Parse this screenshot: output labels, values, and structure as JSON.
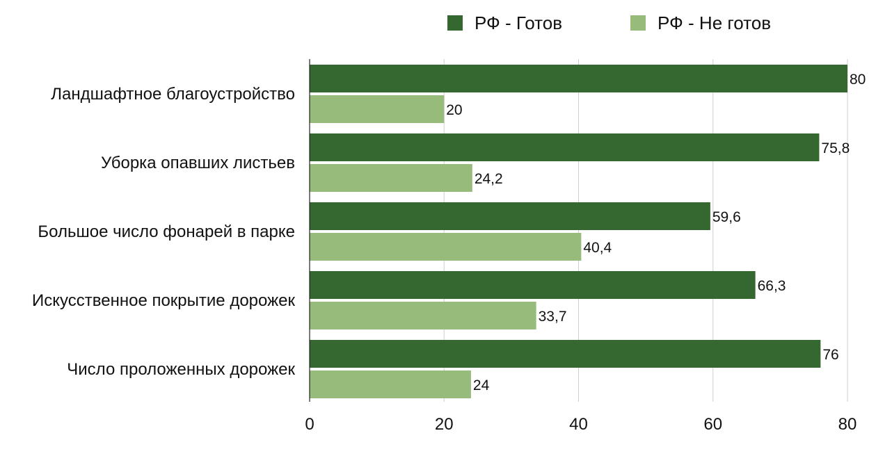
{
  "chart_data": {
    "type": "bar",
    "orientation": "horizontal",
    "categories": [
      "Ландшафтное благоустройство",
      "Уборка опавших листьев",
      "Большое число фонарей в парке",
      "Искусственное покрытие дорожек",
      "Число проложенных дорожек"
    ],
    "series": [
      {
        "name": "РФ - Готов",
        "color": "#356731",
        "values": [
          80,
          75.8,
          59.6,
          66.3,
          76
        ],
        "labels": [
          "80",
          "75,8",
          "59,6",
          "66,3",
          "76"
        ]
      },
      {
        "name": "РФ - Не готов",
        "color": "#97bb7a",
        "values": [
          20,
          24.2,
          40.4,
          33.7,
          24
        ],
        "labels": [
          "20",
          "24,2",
          "40,4",
          "33,7",
          "24"
        ]
      }
    ],
    "xlim": [
      0,
      80
    ],
    "xticks": [
      0,
      20,
      40,
      60,
      80
    ],
    "grid": true,
    "legend_position": "top",
    "title": "",
    "xlabel": "",
    "ylabel": ""
  }
}
